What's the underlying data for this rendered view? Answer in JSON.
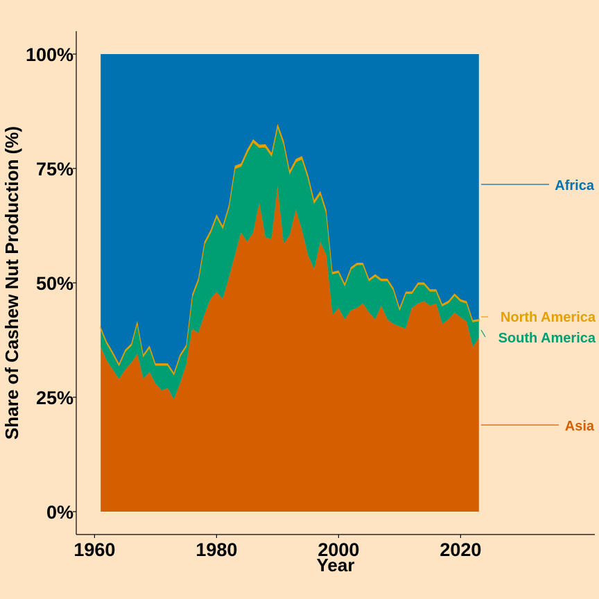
{
  "chart_data": {
    "type": "area",
    "stacked": true,
    "normalized": true,
    "title": "",
    "xlabel": "Year",
    "ylabel": "Share of Cashew Nut Production (%)",
    "xlim": [
      1957,
      2042
    ],
    "ylim": [
      -5,
      105
    ],
    "x_ticks": [
      1960,
      1980,
      2000,
      2020
    ],
    "x_tick_labels": [
      "1960",
      "1980",
      "2000",
      "2020"
    ],
    "y_ticks": [
      0,
      25,
      50,
      75,
      100
    ],
    "y_tick_labels": [
      "0%",
      "25%",
      "50%",
      "75%",
      "100%"
    ],
    "grid": false,
    "legend": "direct-labels-right",
    "x": [
      1961,
      1962,
      1963,
      1964,
      1965,
      1966,
      1967,
      1968,
      1969,
      1970,
      1971,
      1972,
      1973,
      1974,
      1975,
      1976,
      1977,
      1978,
      1979,
      1980,
      1981,
      1982,
      1983,
      1984,
      1985,
      1986,
      1987,
      1988,
      1989,
      1990,
      1991,
      1992,
      1993,
      1994,
      1995,
      1996,
      1997,
      1998,
      1999,
      2000,
      2001,
      2002,
      2003,
      2004,
      2005,
      2006,
      2007,
      2008,
      2009,
      2010,
      2011,
      2012,
      2013,
      2014,
      2015,
      2016,
      2017,
      2018,
      2019,
      2020,
      2021,
      2022,
      2023
    ],
    "series": [
      {
        "name": "Asia",
        "color": "#D55E00",
        "values": [
          36,
          33,
          31,
          29,
          31,
          32.5,
          34.5,
          29,
          30.5,
          28,
          26.5,
          27,
          24.5,
          28,
          32,
          40,
          39,
          43,
          46.5,
          48,
          46.5,
          51,
          56,
          61,
          59,
          61,
          67.5,
          60,
          59.5,
          71,
          58.5,
          60.5,
          66,
          61.5,
          56,
          53,
          59,
          56,
          43,
          44.5,
          42,
          44,
          44.5,
          45.5,
          43.5,
          42,
          45,
          42,
          41,
          40.5,
          40,
          44.5,
          45.5,
          46,
          45,
          45.5,
          41,
          42,
          43.5,
          42.5,
          41.5,
          36,
          38
        ]
      },
      {
        "name": "South America",
        "color": "#009E73",
        "values": [
          4,
          3.8,
          3.5,
          3,
          4,
          3.8,
          6.8,
          5,
          5.4,
          4,
          5.5,
          5,
          5.5,
          6,
          4,
          7,
          11.5,
          15.5,
          14.5,
          16.5,
          15.5,
          15.5,
          19,
          14.5,
          19.5,
          19.8,
          12.1,
          19.7,
          18.3,
          13.2,
          22,
          13.5,
          10.5,
          15.6,
          17,
          14.5,
          10.5,
          9.3,
          9,
          7.8,
          7.5,
          9,
          9.5,
          8.5,
          7,
          9.5,
          5.5,
          8.5,
          7.5,
          3.7,
          7.7,
          3.2,
          4.2,
          3.7,
          3.2,
          2.7,
          4,
          3.7,
          3.8,
          3.5,
          4.1,
          5.5,
          3.7
        ]
      },
      {
        "name": "North America",
        "color": "#E69F00",
        "values": [
          0.4,
          0.4,
          0.4,
          0.4,
          0.4,
          0.4,
          0.4,
          0.4,
          0.4,
          0.4,
          0.4,
          0.4,
          0.4,
          0.4,
          0.4,
          0.5,
          0.5,
          0.5,
          0.5,
          0.5,
          0.5,
          0.5,
          0.6,
          0.6,
          0.6,
          0.6,
          0.6,
          0.6,
          0.6,
          0.6,
          0.6,
          0.6,
          0.6,
          0.6,
          0.6,
          0.6,
          0.6,
          0.6,
          0.4,
          0.4,
          0.4,
          0.4,
          0.4,
          0.4,
          0.4,
          0.4,
          0.4,
          0.4,
          0.4,
          0.4,
          0.4,
          0.4,
          0.4,
          0.4,
          0.4,
          0.4,
          0.4,
          0.4,
          0.4,
          0.4,
          0.4,
          0.4,
          0.4
        ]
      },
      {
        "name": "Africa",
        "color": "#0072B2",
        "values": [
          59.6,
          62.8,
          65.1,
          67.6,
          64.6,
          63.3,
          58.3,
          65.6,
          63.7,
          67.6,
          67.6,
          67.6,
          69.6,
          65.6,
          63.6,
          52.5,
          49,
          41,
          38.5,
          35,
          37.5,
          33,
          24.4,
          23.9,
          20.9,
          18.6,
          19.8,
          19.7,
          21.6,
          15.2,
          18.9,
          25.4,
          22.9,
          22.3,
          26.4,
          31.9,
          29.9,
          34.1,
          47.6,
          47.3,
          50.1,
          46.6,
          45.6,
          45.6,
          49.1,
          48.1,
          49.1,
          49.1,
          51.1,
          55.4,
          51.9,
          51.9,
          49.9,
          49.9,
          51.4,
          51.4,
          54.6,
          53.9,
          52.3,
          53.6,
          54,
          58.1,
          57.9
        ]
      }
    ],
    "labels": {
      "asia": "Asia",
      "south_america": "South America",
      "north_america": "North America",
      "africa": "Africa"
    }
  }
}
